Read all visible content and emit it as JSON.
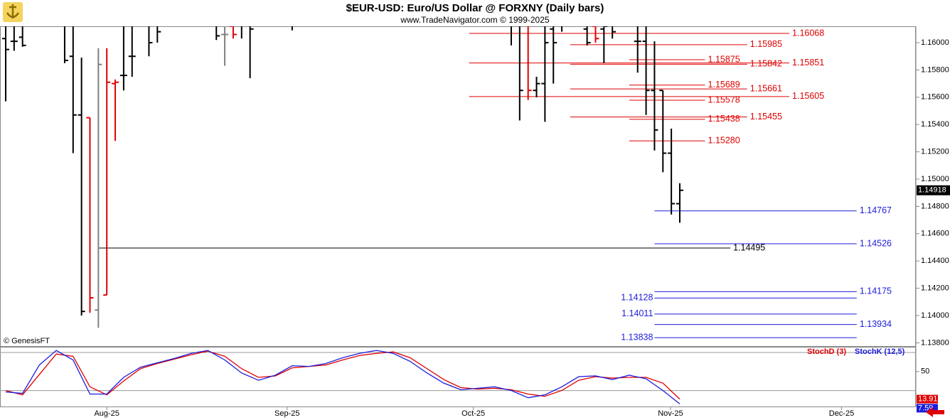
{
  "header": {
    "title": "$EUR-USD:  Euro/US Dollar @ FORXNY  (Daily bars)",
    "subtitle": "www.TradeNavigator.com © 1999-2025",
    "copyright": "© GenesisFT"
  },
  "chart_data": [
    {
      "type": "ohlc",
      "x": [
        0,
        1,
        2,
        7,
        8,
        9,
        10,
        11,
        12,
        13,
        14,
        15,
        17,
        18,
        25,
        26,
        27,
        28,
        29,
        34,
        60,
        61,
        62,
        63,
        64,
        65,
        66,
        69,
        70,
        71,
        72,
        75,
        76,
        77,
        78,
        79,
        80
      ],
      "open": [
        1.1603,
        1.1601,
        1.1604,
        1.162,
        1.159,
        1.1547,
        1.1545,
        1.1404,
        1.1415,
        1.157,
        1.1576,
        1.159,
        1.162,
        1.1625,
        1.162,
        1.1606,
        1.1612,
        1.1625,
        1.164,
        1.166,
        1.163,
        1.164,
        1.162,
        1.1565,
        1.157,
        1.161,
        1.162,
        1.161,
        1.1612,
        1.161,
        1.1615,
        1.1601,
        1.1601,
        1.1565,
        1.1565,
        1.1519,
        1.1482
      ],
      "high": [
        1.163,
        1.164,
        1.165,
        1.166,
        1.1625,
        1.1589,
        1.1545,
        1.1596,
        1.1596,
        1.1573,
        1.163,
        1.164,
        1.166,
        1.166,
        1.168,
        1.165,
        1.164,
        1.166,
        1.168,
        1.17,
        1.166,
        1.165,
        1.164,
        1.1575,
        1.163,
        1.164,
        1.165,
        1.162,
        1.162,
        1.163,
        1.163,
        1.163,
        1.162,
        1.1601,
        1.1565,
        1.1537,
        1.1497
      ],
      "low": [
        1.1557,
        1.1594,
        1.1597,
        1.1585,
        1.1519,
        1.14,
        1.1402,
        1.1391,
        1.1415,
        1.1528,
        1.1565,
        1.1575,
        1.159,
        1.16,
        1.1602,
        1.1583,
        1.1603,
        1.1603,
        1.1574,
        1.1609,
        1.1598,
        1.1543,
        1.1558,
        1.156,
        1.1542,
        1.157,
        1.1608,
        1.1598,
        1.16,
        1.1585,
        1.1603,
        1.1578,
        1.1547,
        1.1521,
        1.1505,
        1.1474,
        1.1468
      ],
      "close": [
        1.1595,
        1.1601,
        1.1598,
        1.1587,
        1.1547,
        1.1403,
        1.1413,
        1.1584,
        1.1571,
        1.1571,
        1.1576,
        1.159,
        1.16,
        1.1608,
        1.1605,
        1.1606,
        1.1606,
        1.162,
        1.161,
        1.163,
        1.162,
        1.1565,
        1.1565,
        1.157,
        1.16,
        1.16,
        1.1615,
        1.16,
        1.1603,
        1.1612,
        1.1608,
        1.1601,
        1.1565,
        1.1536,
        1.1519,
        1.1482,
        1.14918
      ],
      "colors": [
        "#000",
        "#000",
        "#000",
        "#000",
        "#000",
        "#000",
        "#e00000",
        "#808080",
        "#e00000",
        "#e00000",
        "#000",
        "#000",
        "#000",
        "#000",
        "#000",
        "#808080",
        "#e00000",
        "#000",
        "#000",
        "#000",
        "#000",
        "#000",
        "#e00000",
        "#000",
        "#000",
        "#000",
        "#000",
        "#000",
        "#e00000",
        "#000",
        "#000",
        "#000",
        "#000",
        "#000",
        "#000",
        "#000",
        "#000"
      ],
      "xlim": [
        -0.675,
        108.02
      ],
      "ylim": [
        1.13776,
        1.1612
      ],
      "yticks": [
        {
          "value": 1.138,
          "label": "1.13800"
        },
        {
          "value": 1.14,
          "label": "1.14000"
        },
        {
          "value": 1.142,
          "label": "1.14200"
        },
        {
          "value": 1.144,
          "label": "1.14400"
        },
        {
          "value": 1.146,
          "label": "1.14600"
        },
        {
          "value": 1.148,
          "label": "1.14800"
        },
        {
          "value": 1.15,
          "label": "1.15000"
        },
        {
          "value": 1.152,
          "label": "1.15200"
        },
        {
          "value": 1.154,
          "label": "1.15400"
        },
        {
          "value": 1.156,
          "label": "1.15600"
        },
        {
          "value": 1.158,
          "label": "1.15800"
        },
        {
          "value": 1.16,
          "label": "1.16000"
        }
      ],
      "levels": {
        "values": [
          1.16068,
          1.15985,
          1.15875,
          1.15851,
          1.15842,
          1.15689,
          1.15661,
          1.15605,
          1.15578,
          1.15455,
          1.15438,
          1.1528,
          1.14495,
          1.14767,
          1.14526,
          1.14175,
          1.14128,
          1.14011,
          1.13934,
          1.13838
        ],
        "value_labels": [
          "1.16068",
          "1.15985",
          "1.15875",
          "1.15851",
          "1.15842",
          "1.15689",
          "1.15661",
          "1.15605",
          "1.15578",
          "1.15455",
          "1.15438",
          "1.15280",
          "1.14495",
          "1.14767",
          "1.14526",
          "1.14175",
          "1.14128",
          "1.14011",
          "1.13934",
          "1.13838"
        ],
        "colors": [
          "#e00000",
          "#e00000",
          "#e00000",
          "#e00000",
          "#e00000",
          "#e00000",
          "#e00000",
          "#e00000",
          "#e00000",
          "#e00000",
          "#e00000",
          "#e00000",
          "#000",
          "#1c1cdc",
          "#1c1cdc",
          "#1c1cdc",
          "#1c1cdc",
          "#1c1cdc",
          "#1c1cdc",
          "#1c1cdc"
        ],
        "x0": [
          55,
          67,
          74,
          55,
          67,
          74,
          67,
          55,
          74,
          67,
          74,
          74,
          11,
          77,
          77,
          77,
          77,
          77,
          77,
          77
        ],
        "x1": [
          93,
          88,
          83,
          93,
          88,
          83,
          88,
          93,
          83,
          88,
          83,
          83,
          86,
          101,
          101,
          101,
          101,
          101,
          101,
          101
        ],
        "label_positions": [
          "right",
          "right",
          "right",
          "right",
          "right",
          "right",
          "right",
          "right",
          "right",
          "right",
          "right",
          "right",
          "right",
          "right",
          "right",
          "right",
          "left",
          "left",
          "right",
          "left"
        ]
      }
    },
    {
      "type": "line",
      "x": [
        0,
        2,
        4,
        6,
        8,
        10,
        12,
        14,
        16,
        18,
        20,
        22,
        24,
        26,
        28,
        30,
        32,
        34,
        36,
        38,
        40,
        42,
        44,
        46,
        48,
        50,
        52,
        54,
        56,
        58,
        60,
        62,
        64,
        66,
        68,
        70,
        72,
        74,
        76,
        78,
        80
      ],
      "series": [
        {
          "name": "StochD (3)",
          "color": "#e00000",
          "values": [
            25.2,
            19.5,
            46.2,
            72.9,
            70,
            30,
            19.5,
            37.6,
            53.8,
            60.5,
            66.2,
            71.9,
            76.7,
            70,
            53.8,
            42.4,
            44.3,
            54.8,
            56.7,
            58.6,
            65.2,
            71,
            73.8,
            75.7,
            68.1,
            53.8,
            39.5,
            29,
            27.1,
            28.1,
            26.2,
            20.5,
            17.6,
            25.2,
            38.6,
            43.3,
            41.4,
            42.4,
            42.4,
            34.8,
            13.91
          ]
        },
        {
          "name": "StochK (12,5)",
          "color": "#1c1cdc",
          "values": [
            23.3,
            21.4,
            58.6,
            77.6,
            65.2,
            20.5,
            20.5,
            42.4,
            55.7,
            61.4,
            67.1,
            73.8,
            77.6,
            65.2,
            48.1,
            38.6,
            45.2,
            57.6,
            56.7,
            60.5,
            68.1,
            73.8,
            77.6,
            73.8,
            63.3,
            48.1,
            34.8,
            26.2,
            28.1,
            30,
            25.2,
            15.7,
            19.5,
            30,
            43.3,
            44.3,
            39.5,
            45.2,
            40.5,
            25.2,
            7.59
          ]
        }
      ],
      "xlim": [
        -0.675,
        108.02
      ],
      "ylim": [
        3.3,
        82.4
      ],
      "yticks": [
        50
      ],
      "guides": [
        75,
        25
      ],
      "xticks": [
        {
          "value": 12,
          "label": "Aug-25"
        },
        {
          "value": 33.4,
          "label": "Sep-25"
        },
        {
          "value": 55.5,
          "label": "Oct-25"
        },
        {
          "value": 78.9,
          "label": "Nov-25"
        },
        {
          "value": 99.2,
          "label": "Dec-25"
        }
      ]
    }
  ]
}
